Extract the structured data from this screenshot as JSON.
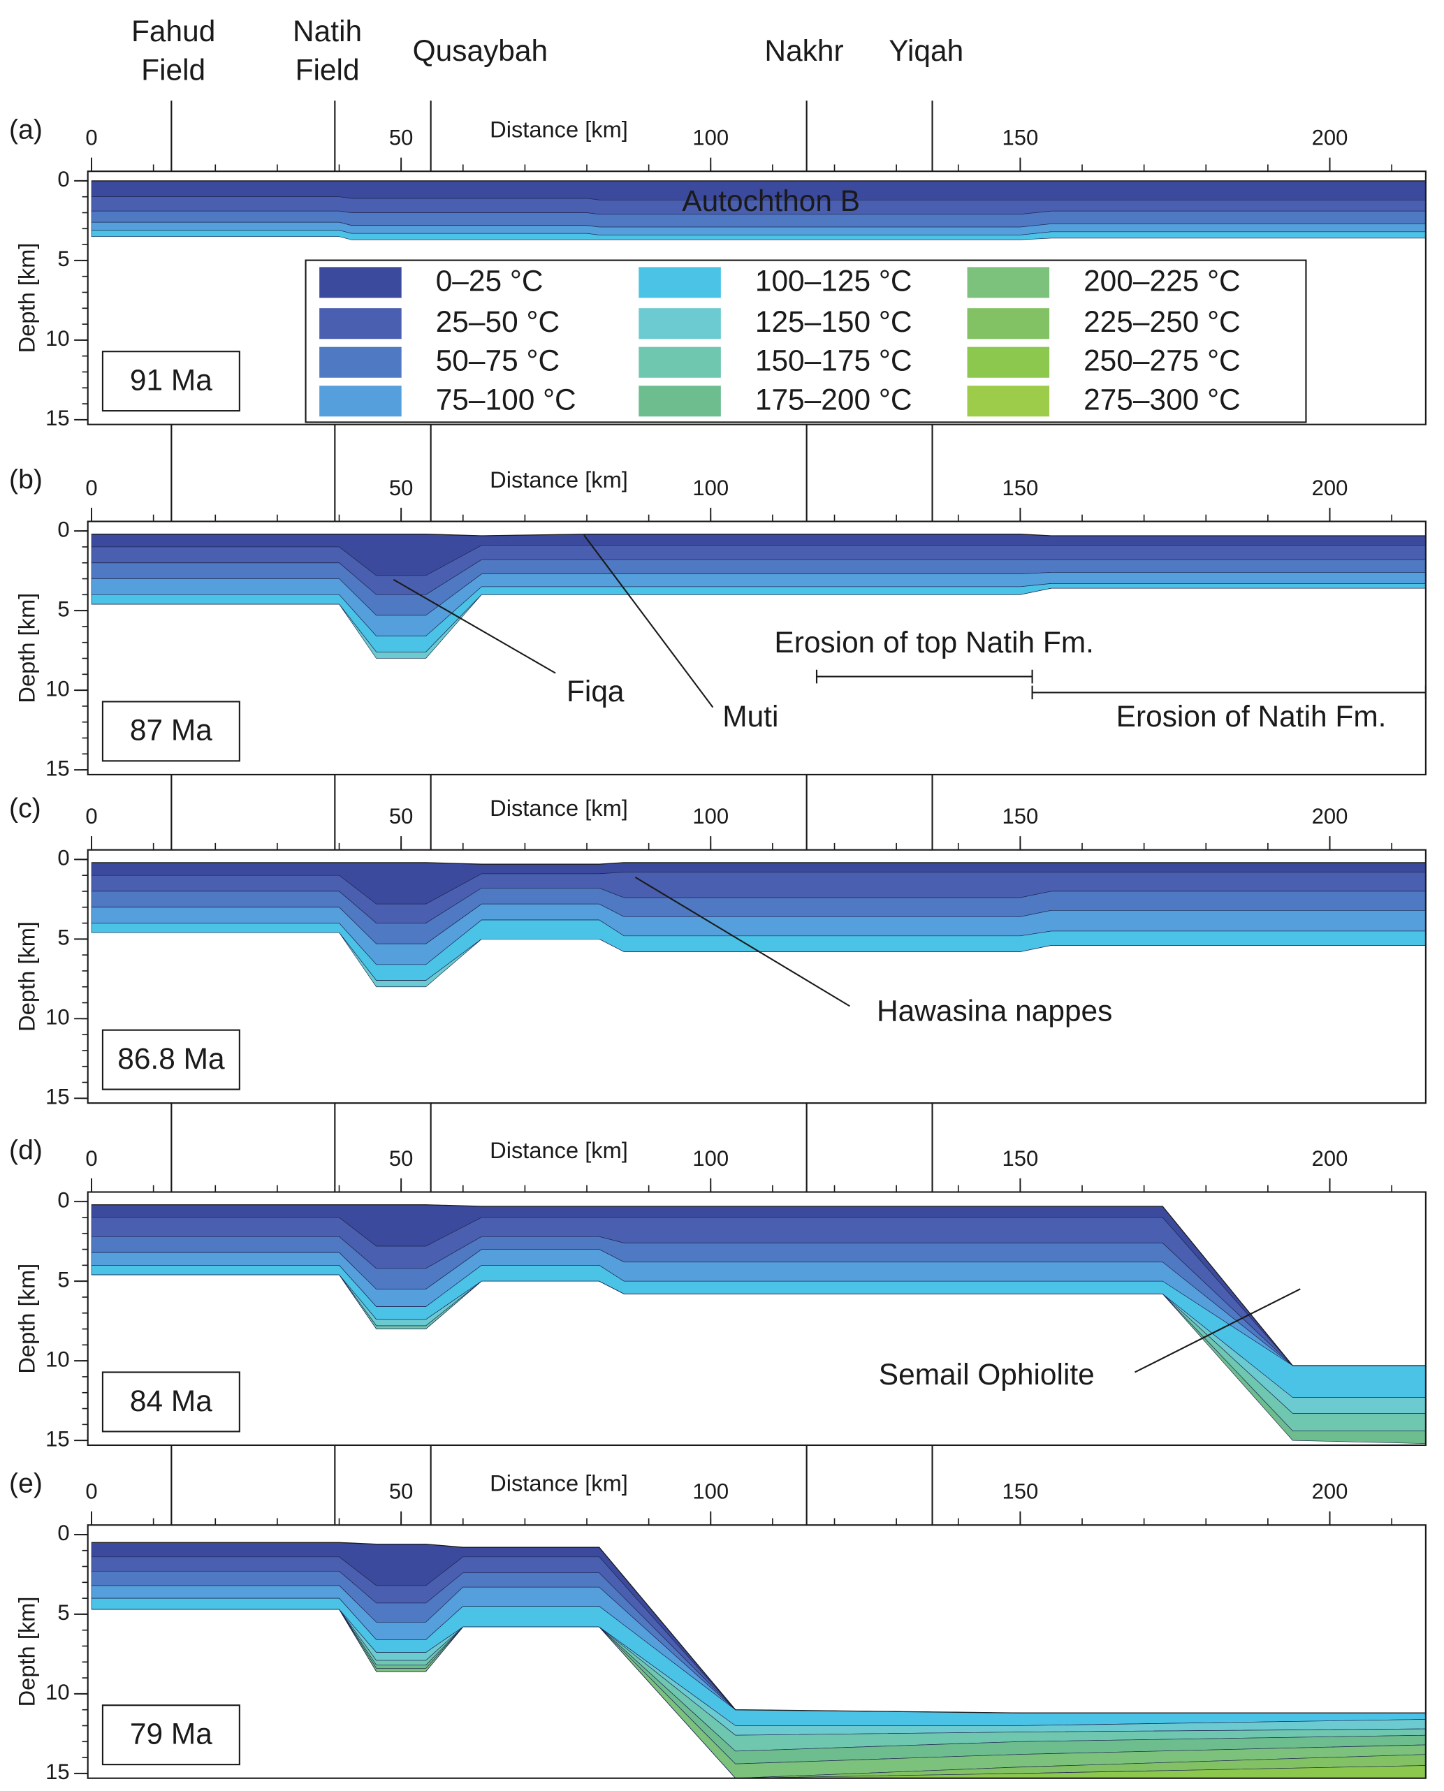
{
  "wells": [
    {
      "label": "Fahud Field",
      "x": 12.9
    },
    {
      "label": "Natih Field",
      "x": 39.3
    },
    {
      "label": "Qusaybah",
      "x": 54.8
    },
    {
      "label": "Nakhr",
      "x": 115.5
    },
    {
      "label": "Yiqah",
      "x": 135.8
    }
  ],
  "legend": [
    {
      "name": "0–25 °C",
      "color": "#3c4a9e"
    },
    {
      "name": "25–50 °C",
      "color": "#4a5fb0"
    },
    {
      "name": "50–75 °C",
      "color": "#4f79c2"
    },
    {
      "name": "75–100 °C",
      "color": "#55a0dc"
    },
    {
      "name": "100–125 °C",
      "color": "#4bc3e6"
    },
    {
      "name": "125–150 °C",
      "color": "#6ccbd0"
    },
    {
      "name": "150–175 °C",
      "color": "#6fc7b0"
    },
    {
      "name": "175–200 °C",
      "color": "#6dbd8f"
    },
    {
      "name": "200–225 °C",
      "color": "#7cc27c"
    },
    {
      "name": "225–250 °C",
      "color": "#82c264"
    },
    {
      "name": "250–275 °C",
      "color": "#8cc84e"
    },
    {
      "name": "275–300 °C",
      "color": "#9ccc49"
    }
  ],
  "chart_data": [
    {
      "type": "cross-section",
      "label": "(a)",
      "age": "91 Ma",
      "xlabel": "Distance [km]",
      "ylabel": "Depth [km]",
      "xlim": [
        -0.6,
        215.5
      ],
      "ylim": [
        -0.6,
        15.3
      ],
      "y_inverted": true,
      "xticks": [
        0,
        50,
        100,
        150,
        200
      ],
      "yticks": [
        0,
        5,
        10,
        15
      ],
      "x_minor_step": 10,
      "y_minor_step": 1,
      "annotations": [
        "Autochthon B"
      ],
      "x": [
        0,
        40,
        42,
        80,
        82,
        150,
        155,
        216
      ],
      "top": [
        0,
        0,
        0,
        0,
        0,
        0,
        0,
        0
      ],
      "series": [
        {
          "color": "#3c4a9e",
          "values": [
            1.0,
            1.0,
            1.1,
            1.1,
            1.2,
            1.2,
            1.2,
            1.2
          ]
        },
        {
          "color": "#4a5fb0",
          "values": [
            1.9,
            1.9,
            2.0,
            2.0,
            2.1,
            2.1,
            1.9,
            1.9
          ]
        },
        {
          "color": "#4f79c2",
          "values": [
            2.6,
            2.6,
            2.8,
            2.8,
            2.9,
            2.9,
            2.7,
            2.7
          ]
        },
        {
          "color": "#55a0dc",
          "values": [
            3.1,
            3.1,
            3.3,
            3.3,
            3.4,
            3.4,
            3.2,
            3.2
          ]
        },
        {
          "color": "#4bc3e6",
          "values": [
            3.5,
            3.5,
            3.7,
            3.7,
            3.7,
            3.7,
            3.6,
            3.6
          ]
        }
      ]
    },
    {
      "type": "cross-section",
      "label": "(b)",
      "age": "87 Ma",
      "xlabel": "Distance [km]",
      "ylabel": "Depth [km]",
      "xlim": [
        -0.6,
        215.5
      ],
      "ylim": [
        -0.6,
        15.3
      ],
      "y_inverted": true,
      "xticks": [
        0,
        50,
        100,
        150,
        200
      ],
      "yticks": [
        0,
        5,
        10,
        15
      ],
      "x_minor_step": 10,
      "y_minor_step": 1,
      "annotations": [
        "Fiqa",
        "Muti",
        "Erosion of top Natih Fm.",
        "Erosion of Natih Fm."
      ],
      "x": [
        0,
        40,
        46,
        54,
        63,
        80,
        150,
        155,
        216
      ],
      "top": [
        0.2,
        0.2,
        0.2,
        0.2,
        0.3,
        0.2,
        0.2,
        0.3,
        0.3
      ],
      "series": [
        {
          "color": "#3c4a9e",
          "values": [
            1.0,
            1.0,
            2.8,
            2.8,
            0.9,
            0.9,
            0.9,
            0.9,
            0.9
          ]
        },
        {
          "color": "#4a5fb0",
          "values": [
            2.0,
            2.0,
            4.0,
            4.0,
            1.8,
            1.8,
            1.8,
            1.8,
            1.8
          ]
        },
        {
          "color": "#4f79c2",
          "values": [
            3.0,
            3.0,
            5.3,
            5.3,
            2.7,
            2.7,
            2.7,
            2.6,
            2.6
          ]
        },
        {
          "color": "#55a0dc",
          "values": [
            4.0,
            4.0,
            6.6,
            6.6,
            3.5,
            3.5,
            3.5,
            3.3,
            3.3
          ]
        },
        {
          "color": "#4bc3e6",
          "values": [
            4.6,
            4.6,
            7.6,
            7.6,
            4.0,
            4.0,
            4.0,
            3.6,
            3.6
          ]
        },
        {
          "color": "#6ccbd0",
          "values": [
            4.6,
            4.6,
            8.0,
            8.0,
            4.0,
            4.0,
            4.0,
            3.6,
            3.6
          ]
        }
      ]
    },
    {
      "type": "cross-section",
      "label": "(c)",
      "age": "86.8 Ma",
      "xlabel": "Distance [km]",
      "ylabel": "Depth [km]",
      "xlim": [
        -0.6,
        215.5
      ],
      "ylim": [
        -0.6,
        15.3
      ],
      "y_inverted": true,
      "xticks": [
        0,
        50,
        100,
        150,
        200
      ],
      "yticks": [
        0,
        5,
        10,
        15
      ],
      "x_minor_step": 10,
      "y_minor_step": 1,
      "annotations": [
        "Hawasina nappes"
      ],
      "x": [
        0,
        40,
        46,
        54,
        63,
        82,
        86,
        150,
        155,
        216
      ],
      "top": [
        0.2,
        0.2,
        0.2,
        0.2,
        0.3,
        0.3,
        0.2,
        0.2,
        0.2,
        0.2
      ],
      "series": [
        {
          "color": "#3c4a9e",
          "values": [
            1.0,
            1.0,
            2.8,
            2.8,
            0.9,
            0.9,
            0.8,
            0.8,
            0.8,
            0.8
          ]
        },
        {
          "color": "#4a5fb0",
          "values": [
            2.0,
            2.0,
            4.0,
            4.0,
            1.8,
            1.8,
            2.4,
            2.4,
            2.0,
            2.0
          ]
        },
        {
          "color": "#4f79c2",
          "values": [
            3.0,
            3.0,
            5.3,
            5.3,
            2.8,
            2.8,
            3.6,
            3.6,
            3.2,
            3.2
          ]
        },
        {
          "color": "#55a0dc",
          "values": [
            4.0,
            4.0,
            6.6,
            6.6,
            3.8,
            3.8,
            4.8,
            4.8,
            4.5,
            4.5
          ]
        },
        {
          "color": "#4bc3e6",
          "values": [
            4.6,
            4.6,
            7.6,
            7.6,
            5.0,
            5.0,
            5.8,
            5.8,
            5.4,
            5.4
          ]
        },
        {
          "color": "#6ccbd0",
          "values": [
            4.6,
            4.6,
            8.0,
            8.0,
            5.0,
            5.0,
            5.8,
            5.8,
            5.4,
            5.4
          ]
        }
      ]
    },
    {
      "type": "cross-section",
      "label": "(d)",
      "age": "84 Ma",
      "xlabel": "Distance [km]",
      "ylabel": "Depth [km]",
      "xlim": [
        -0.6,
        215.5
      ],
      "ylim": [
        -0.6,
        15.3
      ],
      "y_inverted": true,
      "xticks": [
        0,
        50,
        100,
        150,
        200
      ],
      "yticks": [
        0,
        5,
        10,
        15
      ],
      "x_minor_step": 10,
      "y_minor_step": 1,
      "annotations": [
        "Semail Ophiolite"
      ],
      "x": [
        0,
        40,
        46,
        54,
        63,
        82,
        86,
        173,
        194,
        216
      ],
      "top": [
        0.2,
        0.2,
        0.2,
        0.2,
        0.3,
        0.3,
        0.3,
        0.3,
        10.3,
        10.3
      ],
      "series": [
        {
          "color": "#3c4a9e",
          "values": [
            1.0,
            1.0,
            2.8,
            2.8,
            1.0,
            1.0,
            1.0,
            1.0,
            10.3,
            10.3
          ]
        },
        {
          "color": "#4a5fb0",
          "values": [
            2.2,
            2.2,
            4.2,
            4.2,
            2.2,
            2.2,
            2.6,
            2.6,
            10.3,
            10.3
          ]
        },
        {
          "color": "#4f79c2",
          "values": [
            3.2,
            3.2,
            5.5,
            5.5,
            3.0,
            3.0,
            3.8,
            3.8,
            10.3,
            10.3
          ]
        },
        {
          "color": "#55a0dc",
          "values": [
            4.0,
            4.0,
            6.6,
            6.6,
            4.0,
            4.0,
            5.0,
            5.0,
            10.3,
            10.3
          ]
        },
        {
          "color": "#4bc3e6",
          "values": [
            4.6,
            4.6,
            7.4,
            7.4,
            5.0,
            5.0,
            5.8,
            5.8,
            12.3,
            12.3
          ]
        },
        {
          "color": "#6ccbd0",
          "values": [
            4.6,
            4.6,
            7.8,
            7.8,
            5.0,
            5.0,
            5.8,
            5.8,
            13.3,
            13.3
          ]
        },
        {
          "color": "#6fc7b0",
          "values": [
            4.6,
            4.6,
            8.0,
            8.0,
            5.0,
            5.0,
            5.8,
            5.8,
            14.4,
            14.4
          ]
        },
        {
          "color": "#6dbd8f",
          "values": [
            4.6,
            4.6,
            8.0,
            8.0,
            5.0,
            5.0,
            5.8,
            5.8,
            15.0,
            15.2
          ]
        }
      ]
    },
    {
      "type": "cross-section",
      "label": "(e)",
      "age": "79 Ma",
      "xlabel": "Distance [km]",
      "ylabel": "Depth [km]",
      "xlim": [
        -0.6,
        215.5
      ],
      "ylim": [
        -0.6,
        15.3
      ],
      "y_inverted": true,
      "xticks": [
        0,
        50,
        100,
        150,
        200
      ],
      "yticks": [
        0,
        5,
        10,
        15
      ],
      "x_minor_step": 10,
      "y_minor_step": 1,
      "annotations": [],
      "x": [
        0,
        40,
        46,
        54,
        60,
        82,
        104,
        150,
        216
      ],
      "top": [
        0.5,
        0.5,
        0.6,
        0.6,
        0.8,
        0.8,
        11.0,
        11.2,
        11.2
      ],
      "series": [
        {
          "color": "#3c4a9e",
          "values": [
            1.4,
            1.4,
            3.2,
            3.2,
            1.4,
            1.4,
            11.0,
            11.2,
            11.2
          ]
        },
        {
          "color": "#4a5fb0",
          "values": [
            2.3,
            2.3,
            4.3,
            4.3,
            2.4,
            2.4,
            11.0,
            11.2,
            11.2
          ]
        },
        {
          "color": "#4f79c2",
          "values": [
            3.2,
            3.2,
            5.5,
            5.5,
            3.3,
            3.3,
            11.0,
            11.2,
            11.2
          ]
        },
        {
          "color": "#55a0dc",
          "values": [
            4.0,
            4.0,
            6.6,
            6.6,
            4.5,
            4.5,
            11.0,
            11.2,
            11.2
          ]
        },
        {
          "color": "#4bc3e6",
          "values": [
            4.7,
            4.7,
            7.4,
            7.4,
            5.8,
            5.8,
            12.0,
            12.0,
            11.6
          ]
        },
        {
          "color": "#6ccbd0",
          "values": [
            4.7,
            4.7,
            7.9,
            7.9,
            5.8,
            5.8,
            12.6,
            12.4,
            12.2
          ]
        },
        {
          "color": "#6fc7b0",
          "values": [
            4.7,
            4.7,
            8.2,
            8.2,
            5.8,
            5.8,
            13.6,
            13.0,
            12.6
          ]
        },
        {
          "color": "#6dbd8f",
          "values": [
            4.7,
            4.7,
            8.4,
            8.4,
            5.8,
            5.8,
            14.4,
            13.8,
            13.2
          ]
        },
        {
          "color": "#7cc27c",
          "values": [
            4.7,
            4.7,
            8.6,
            8.6,
            5.8,
            5.8,
            15.3,
            14.6,
            13.8
          ]
        },
        {
          "color": "#82c264",
          "values": [
            4.7,
            4.7,
            8.6,
            8.6,
            5.8,
            5.8,
            15.3,
            15.0,
            14.5
          ]
        },
        {
          "color": "#8cc84e",
          "values": [
            4.7,
            4.7,
            8.6,
            8.6,
            5.8,
            5.8,
            15.3,
            15.3,
            15.3
          ]
        }
      ]
    }
  ]
}
